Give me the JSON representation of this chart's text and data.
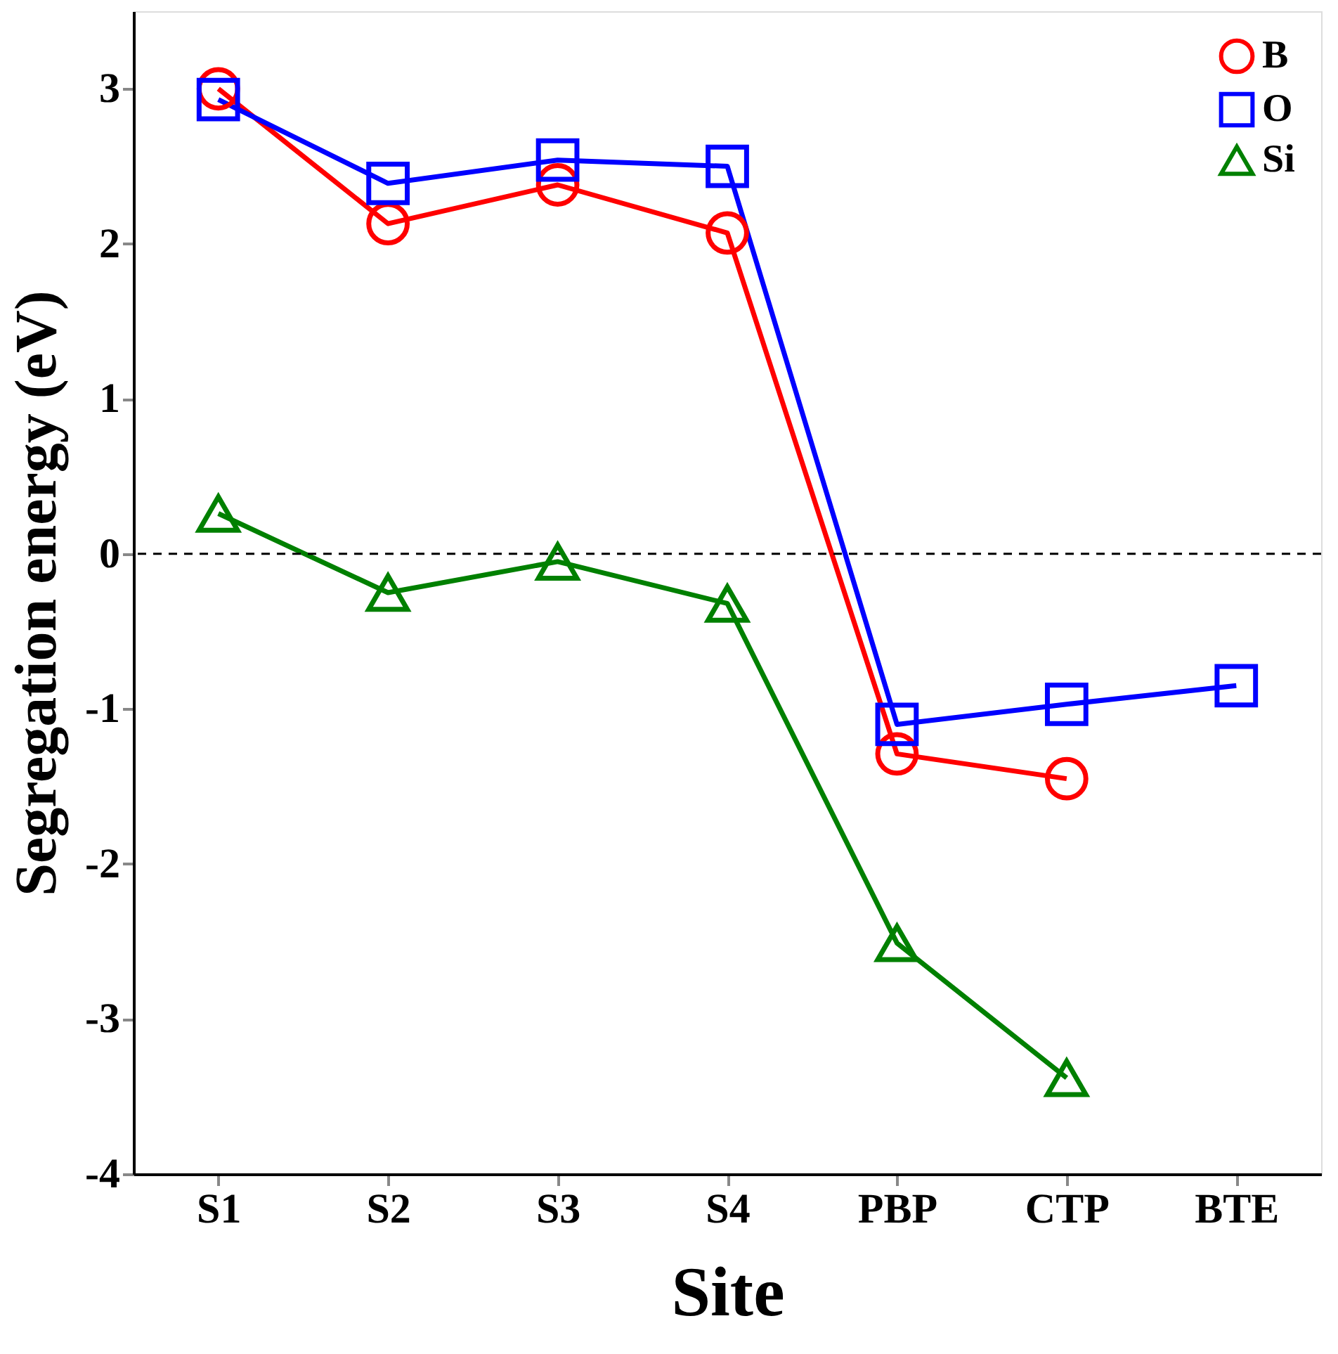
{
  "chart_data": {
    "type": "line",
    "xlabel": "Site",
    "ylabel": "Segregation energy (eV)",
    "categories": [
      "S1",
      "S2",
      "S3",
      "S4",
      "PBP",
      "CTP",
      "BTE"
    ],
    "series": [
      {
        "name": "B",
        "color": "#ff0000",
        "marker": "circle",
        "values": [
          3.0,
          2.13,
          2.38,
          2.07,
          -1.29,
          -1.45,
          null
        ]
      },
      {
        "name": "O",
        "color": "#0000ff",
        "marker": "square",
        "values": [
          2.93,
          2.39,
          2.54,
          2.5,
          -1.1,
          -0.97,
          -0.85
        ]
      },
      {
        "name": "Si",
        "color": "#008000",
        "marker": "triangle",
        "values": [
          0.26,
          -0.25,
          -0.05,
          -0.32,
          -2.51,
          -3.38,
          null
        ]
      }
    ],
    "ylim": [
      -4,
      3.5
    ],
    "yticks": [
      -4,
      -3,
      -2,
      -1,
      0,
      1,
      2,
      3
    ],
    "ref_lines": [
      {
        "axis": "y",
        "value": 0,
        "line_style": "dashed",
        "color": "#000000"
      }
    ],
    "grid": false,
    "legend": "top right",
    "line_style": "solid"
  }
}
